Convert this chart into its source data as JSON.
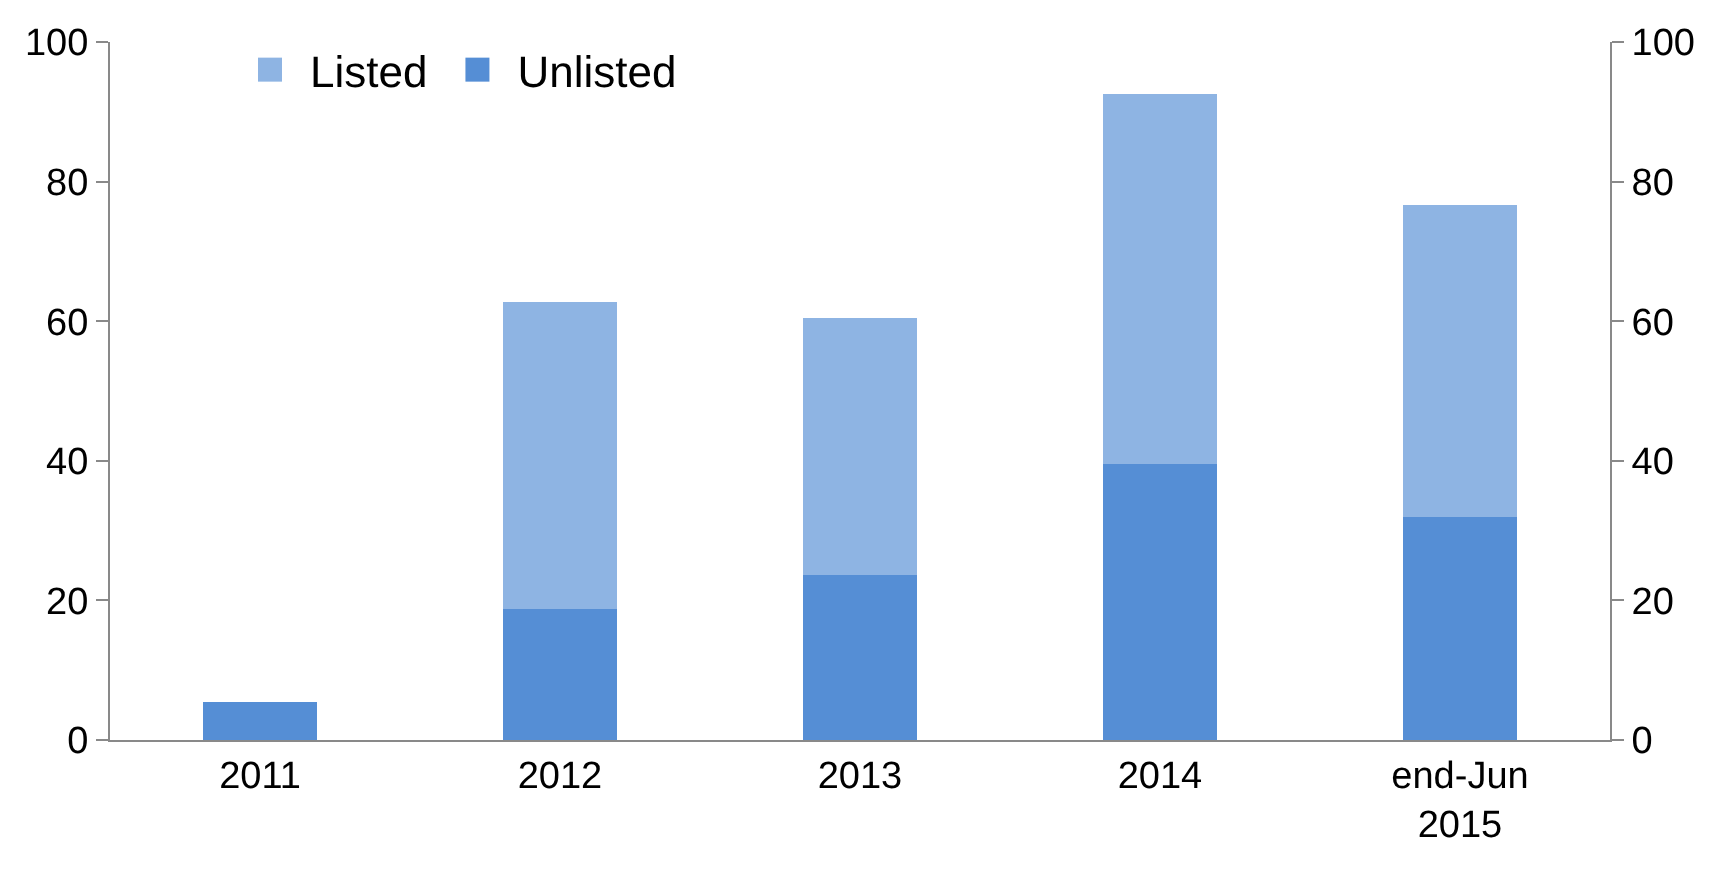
{
  "chart_data": {
    "type": "bar",
    "stacked": true,
    "categories": [
      "2011",
      "2012",
      "2013",
      "2014",
      "end-Jun\n2015"
    ],
    "series": [
      {
        "name": "Unlisted",
        "color": "#558ed5",
        "values": [
          5.4,
          18.8,
          23.6,
          39.6,
          31.9
        ]
      },
      {
        "name": "Listed",
        "color": "#8eb4e3",
        "values": [
          0,
          43.9,
          36.8,
          53,
          44.7
        ]
      }
    ],
    "ylim": [
      0,
      100
    ],
    "yticks": [
      0,
      20,
      40,
      60,
      80,
      100
    ],
    "y2lim": [
      0,
      100
    ],
    "y2ticks": [
      0,
      20,
      40,
      60,
      80,
      100
    ],
    "legend": "top"
  }
}
